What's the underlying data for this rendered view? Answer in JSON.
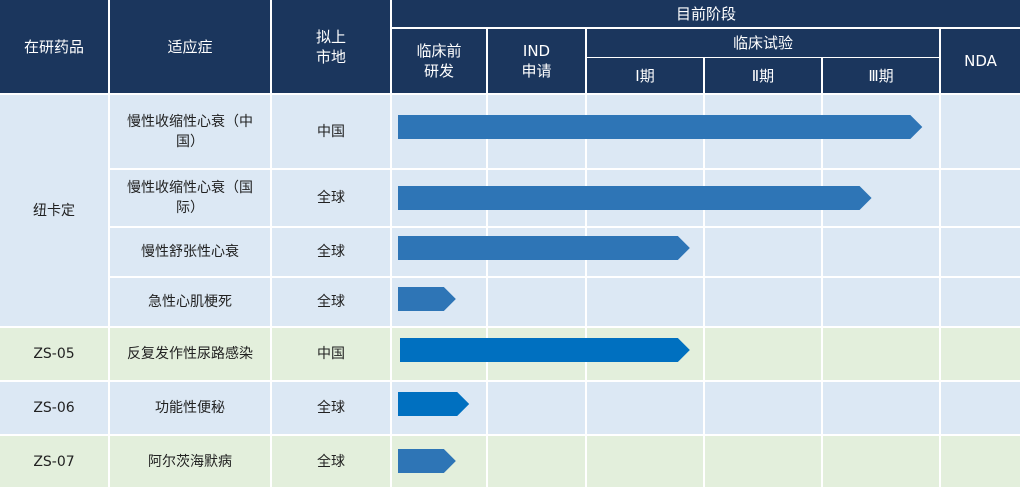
{
  "header": {
    "col_product": "在研药品",
    "col_indication": "适应症",
    "col_market": "拟上\n市地",
    "col_stage_group": "目前阶段",
    "stage_preclinical": "临床前\n研发",
    "stage_ind": "IND\n申请",
    "stage_clinical_group": "临床试验",
    "stage_phase1": "Ⅰ期",
    "stage_phase2": "Ⅱ期",
    "stage_phase3": "Ⅲ期",
    "stage_nda": "NDA"
  },
  "products": [
    {
      "name": "纽卡定",
      "rows": [
        0,
        1,
        2,
        3
      ]
    },
    {
      "name": "ZS-05",
      "rows": [
        4
      ]
    },
    {
      "name": "ZS-06",
      "rows": [
        5
      ]
    },
    {
      "name": "ZS-07",
      "rows": [
        6
      ]
    }
  ],
  "rows": [
    {
      "indication": "慢性收缩性心衰（中\n国）",
      "market": "中国"
    },
    {
      "indication": "慢性收缩性心衰（国\n际）",
      "market": "全球"
    },
    {
      "indication": "慢性舒张性心衰",
      "market": "全球"
    },
    {
      "indication": "急性心肌梗死",
      "market": "全球"
    },
    {
      "indication": "反复发作性尿路感染",
      "market": "中国"
    },
    {
      "indication": "功能性便秘",
      "market": "全球"
    },
    {
      "indication": "阿尔茨海默病",
      "market": "全球"
    }
  ],
  "colors": {
    "header_bg": "#1b365d",
    "row_blue": "#dce8f4",
    "row_green": "#e3efdc",
    "bar_main": "#2e75b6",
    "bar_alt": "#0070c0"
  },
  "chart_data": {
    "type": "bar",
    "orientation": "horizontal",
    "stage_scale": [
      "临床前研发",
      "IND申请",
      "Ⅰ期",
      "Ⅱ期",
      "Ⅲ期",
      "NDA"
    ],
    "categories": [
      "纽卡定 慢性收缩性心衰（中国）",
      "纽卡定 慢性收缩性心衰（国际）",
      "纽卡定 慢性舒张性心衰",
      "纽卡定 急性心肌梗死",
      "ZS-05 反复发作性尿路感染",
      "ZS-06 功能性便秘",
      "ZS-07 阿尔茨海默病"
    ],
    "values": [
      4.85,
      4.42,
      2.88,
      0.65,
      2.88,
      0.8,
      0.65
    ],
    "xlim": [
      0,
      6
    ],
    "value_unit": "stage columns completed"
  }
}
